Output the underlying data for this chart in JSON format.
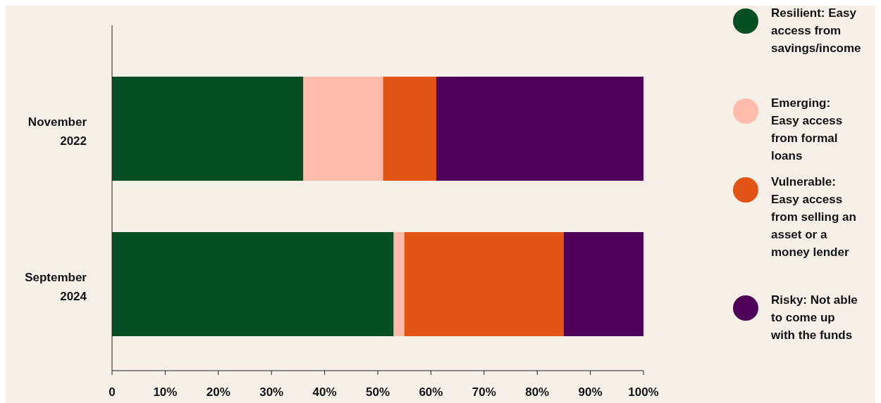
{
  "chart_data": {
    "type": "bar",
    "orientation": "horizontal",
    "stacked": true,
    "categories": [
      "November 2022",
      "September 2024"
    ],
    "series": [
      {
        "name": "Resilient: Easy access from savings/income",
        "color": "#064f25",
        "values": [
          36,
          53
        ]
      },
      {
        "name": "Emerging: Easy access from formal loans",
        "color": "#ffbbab",
        "values": [
          15,
          2
        ]
      },
      {
        "name": "Vulnerable: Easy access from selling an asset or a money lender",
        "color": "#e25316",
        "values": [
          10,
          30
        ]
      },
      {
        "name": "Risky: Not able to come up with the funds",
        "color": "#4f0058",
        "values": [
          39,
          15
        ]
      }
    ],
    "xlim": [
      0,
      100
    ],
    "xticks": [
      {
        "value": 0,
        "label": "0"
      },
      {
        "value": 10,
        "label": "10%"
      },
      {
        "value": 20,
        "label": "20%"
      },
      {
        "value": 30,
        "label": "30%"
      },
      {
        "value": 40,
        "label": "40%"
      },
      {
        "value": 50,
        "label": "50%"
      },
      {
        "value": 60,
        "label": "60%"
      },
      {
        "value": 70,
        "label": "70%"
      },
      {
        "value": 80,
        "label": "80%"
      },
      {
        "value": 90,
        "label": "90%"
      },
      {
        "value": 100,
        "label": "100%"
      }
    ],
    "grid": false,
    "legend": "right"
  }
}
